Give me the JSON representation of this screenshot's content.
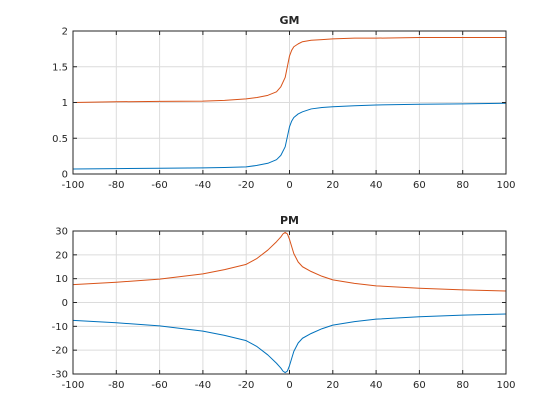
{
  "chart_data": [
    {
      "type": "line",
      "title": "GM",
      "xlabel": "",
      "ylabel": "",
      "xlim": [
        -100,
        100
      ],
      "ylim": [
        0,
        2
      ],
      "xticks": [
        -100,
        -80,
        -60,
        -40,
        -20,
        0,
        20,
        40,
        60,
        80,
        100
      ],
      "yticks": [
        0,
        0.5,
        1,
        1.5,
        2
      ],
      "xtick_labels": [
        "-100",
        "-80",
        "-60",
        "-40",
        "-20",
        "0",
        "20",
        "40",
        "60",
        "80",
        "100"
      ],
      "ytick_labels": [
        "0",
        "0.5",
        "1",
        "1.5",
        "2"
      ],
      "grid": true,
      "series": [
        {
          "color": "#d95319",
          "x": [
            -100,
            -80,
            -60,
            -40,
            -30,
            -20,
            -15,
            -10,
            -6,
            -4,
            -2,
            -1,
            0,
            1,
            2,
            4,
            6,
            10,
            15,
            20,
            30,
            40,
            60,
            80,
            100
          ],
          "y": [
            1.0,
            1.01,
            1.015,
            1.02,
            1.03,
            1.05,
            1.07,
            1.1,
            1.15,
            1.22,
            1.35,
            1.5,
            1.65,
            1.73,
            1.78,
            1.82,
            1.85,
            1.87,
            1.88,
            1.89,
            1.9,
            1.9,
            1.91,
            1.91,
            1.91
          ]
        },
        {
          "color": "#0072bd",
          "x": [
            -100,
            -80,
            -60,
            -40,
            -30,
            -20,
            -15,
            -10,
            -6,
            -4,
            -2,
            -1,
            0,
            1,
            2,
            4,
            6,
            10,
            15,
            20,
            30,
            40,
            60,
            80,
            100
          ],
          "y": [
            0.07,
            0.075,
            0.08,
            0.085,
            0.09,
            0.1,
            0.12,
            0.15,
            0.2,
            0.26,
            0.38,
            0.52,
            0.66,
            0.74,
            0.79,
            0.84,
            0.87,
            0.91,
            0.93,
            0.94,
            0.955,
            0.965,
            0.975,
            0.98,
            0.99
          ]
        }
      ]
    },
    {
      "type": "line",
      "title": "PM",
      "xlabel": "",
      "ylabel": "",
      "xlim": [
        -100,
        100
      ],
      "ylim": [
        -30,
        30
      ],
      "xticks": [
        -100,
        -80,
        -60,
        -40,
        -20,
        0,
        20,
        40,
        60,
        80,
        100
      ],
      "yticks": [
        -30,
        -20,
        -10,
        0,
        10,
        20,
        30
      ],
      "xtick_labels": [
        "-100",
        "-80",
        "-60",
        "-40",
        "-20",
        "0",
        "20",
        "40",
        "60",
        "80",
        "100"
      ],
      "ytick_labels": [
        "-30",
        "-20",
        "-10",
        "0",
        "10",
        "20",
        "30"
      ],
      "grid": true,
      "series": [
        {
          "color": "#d95319",
          "x": [
            -100,
            -80,
            -60,
            -40,
            -30,
            -20,
            -15,
            -10,
            -6,
            -4,
            -3,
            -2,
            -1,
            0,
            1,
            2,
            4,
            6,
            10,
            15,
            20,
            30,
            40,
            60,
            80,
            100
          ],
          "y": [
            7.5,
            8.5,
            9.8,
            12,
            13.8,
            16,
            18.5,
            22,
            25.5,
            27.5,
            28.8,
            29.4,
            28.8,
            26.5,
            23.5,
            20.5,
            17,
            15,
            13,
            11,
            9.5,
            8,
            7,
            6,
            5.3,
            4.8
          ]
        },
        {
          "color": "#0072bd",
          "x": [
            -100,
            -80,
            -60,
            -40,
            -30,
            -20,
            -15,
            -10,
            -6,
            -4,
            -3,
            -2,
            -1,
            0,
            1,
            2,
            4,
            6,
            10,
            15,
            20,
            30,
            40,
            60,
            80,
            100
          ],
          "y": [
            -7.5,
            -8.5,
            -9.8,
            -12,
            -13.8,
            -16,
            -18.5,
            -22,
            -25.5,
            -27.5,
            -28.8,
            -29.4,
            -28.8,
            -26.5,
            -23.5,
            -20.5,
            -17,
            -15,
            -13,
            -11,
            -9.5,
            -8,
            -7,
            -6,
            -5.3,
            -4.8
          ]
        }
      ]
    }
  ]
}
